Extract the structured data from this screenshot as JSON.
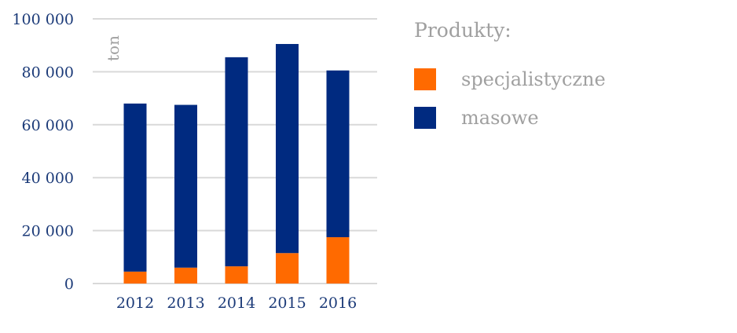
{
  "chart_data": {
    "type": "bar",
    "stacked": true,
    "categories": [
      "2012",
      "2013",
      "2014",
      "2015",
      "2016"
    ],
    "series": [
      {
        "name": "specjalistyczne",
        "values": [
          4500,
          6000,
          6500,
          11500,
          17500
        ]
      },
      {
        "name": "masowe",
        "values": [
          63500,
          61500,
          79000,
          79000,
          63000
        ]
      }
    ],
    "colors": {
      "specjalistyczne": "#ff6a00",
      "masowe": "#002a80"
    },
    "ylim": [
      0,
      100000
    ],
    "yticks": [
      0,
      20000,
      40000,
      60000,
      80000,
      100000
    ],
    "ytick_labels": [
      "0",
      "20 000",
      "40 000",
      "60 000",
      "80 000",
      "100 000"
    ],
    "unit_label": "ton",
    "legend_title": "Produkty:",
    "legend_placement": "right",
    "grid": true
  }
}
